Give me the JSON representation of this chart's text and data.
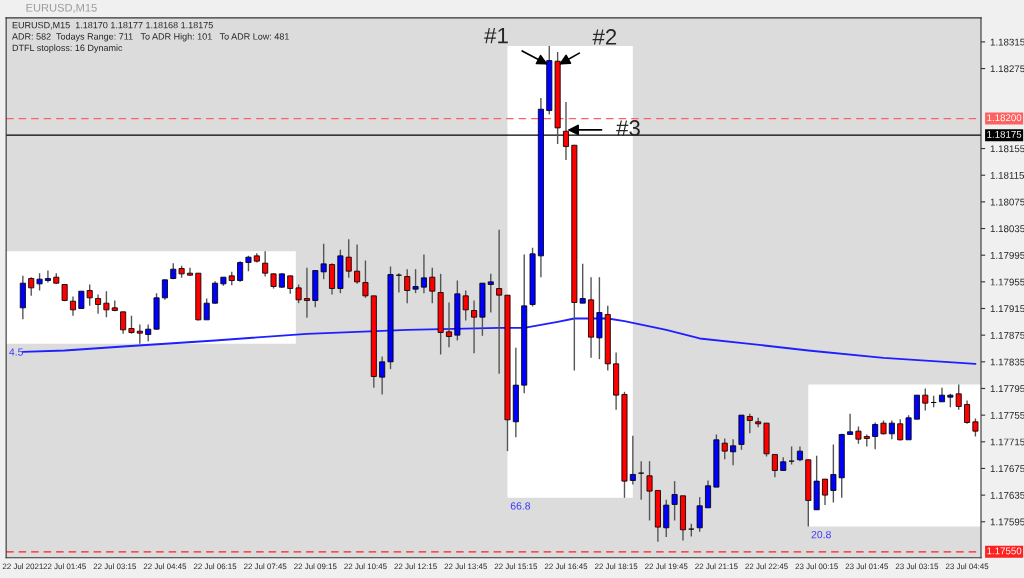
{
  "chart_data": {
    "type": "candlestick",
    "title": "EURUSD,M15",
    "annotations": [
      "EURUSD,M15  1.18170 1.18177 1.18168 1.18175",
      "ADR: 582  Todays Range: 711   To ADR High: 101   To ADR Low: 481",
      "DTFL stoploss: 16 Dynamic",
      {
        "text": "#1",
        "x": "2021-07-22T16:15",
        "y": 1.1828
      },
      {
        "text": "#2",
        "x": "2021-07-22T16:30",
        "y": 1.1828
      },
      {
        "text": "#3",
        "x": "2021-07-22T16:45",
        "y": 1.18183
      }
    ],
    "x": [
      "2021-07-22T00:30",
      "2021-07-22T00:45",
      "2021-07-22T01:00",
      "2021-07-22T01:15",
      "2021-07-22T01:30",
      "2021-07-22T01:45",
      "2021-07-22T02:00",
      "2021-07-22T02:15",
      "2021-07-22T02:30",
      "2021-07-22T02:45",
      "2021-07-22T03:00",
      "2021-07-22T03:15",
      "2021-07-22T03:30",
      "2021-07-22T03:45",
      "2021-07-22T04:00",
      "2021-07-22T04:15",
      "2021-07-22T04:30",
      "2021-07-22T04:45",
      "2021-07-22T05:00",
      "2021-07-22T05:15",
      "2021-07-22T05:30",
      "2021-07-22T05:45",
      "2021-07-22T06:00",
      "2021-07-22T06:15",
      "2021-07-22T06:30",
      "2021-07-22T06:45",
      "2021-07-22T07:00",
      "2021-07-22T07:15",
      "2021-07-22T07:30",
      "2021-07-22T07:45",
      "2021-07-22T08:00",
      "2021-07-22T08:15",
      "2021-07-22T08:30",
      "2021-07-22T08:45",
      "2021-07-22T09:00",
      "2021-07-22T09:15",
      "2021-07-22T09:30",
      "2021-07-22T09:45",
      "2021-07-22T10:00",
      "2021-07-22T10:15",
      "2021-07-22T10:30",
      "2021-07-22T10:45",
      "2021-07-22T11:00",
      "2021-07-22T11:15",
      "2021-07-22T11:30",
      "2021-07-22T11:45",
      "2021-07-22T12:00",
      "2021-07-22T12:15",
      "2021-07-22T12:30",
      "2021-07-22T12:45",
      "2021-07-22T13:00",
      "2021-07-22T13:15",
      "2021-07-22T13:30",
      "2021-07-22T13:45",
      "2021-07-22T14:00",
      "2021-07-22T14:15",
      "2021-07-22T14:30",
      "2021-07-22T14:45",
      "2021-07-22T15:00",
      "2021-07-22T15:15",
      "2021-07-22T15:30",
      "2021-07-22T15:45",
      "2021-07-22T16:00",
      "2021-07-22T16:15",
      "2021-07-22T16:30",
      "2021-07-22T16:45",
      "2021-07-22T17:00",
      "2021-07-22T17:15",
      "2021-07-22T17:30",
      "2021-07-22T17:45",
      "2021-07-22T18:00",
      "2021-07-22T18:15",
      "2021-07-22T18:30",
      "2021-07-22T18:45",
      "2021-07-22T19:00",
      "2021-07-22T19:15",
      "2021-07-22T19:30",
      "2021-07-22T19:45",
      "2021-07-22T20:00",
      "2021-07-22T20:15",
      "2021-07-22T20:30",
      "2021-07-22T20:45",
      "2021-07-22T21:00",
      "2021-07-22T21:15",
      "2021-07-22T21:30",
      "2021-07-22T21:45",
      "2021-07-22T22:00",
      "2021-07-22T22:15",
      "2021-07-22T22:30",
      "2021-07-22T22:45",
      "2021-07-22T23:00",
      "2021-07-22T23:15",
      "2021-07-22T23:30",
      "2021-07-22T23:45",
      "2021-07-23T00:00",
      "2021-07-23T00:15",
      "2021-07-23T00:30",
      "2021-07-23T00:45",
      "2021-07-23T01:00",
      "2021-07-23T01:15",
      "2021-07-23T01:30",
      "2021-07-23T01:45",
      "2021-07-23T02:00",
      "2021-07-23T02:15",
      "2021-07-23T02:30",
      "2021-07-23T02:45",
      "2021-07-23T03:00",
      "2021-07-23T03:15",
      "2021-07-23T03:30",
      "2021-07-23T03:45",
      "2021-07-23T04:00",
      "2021-07-23T04:15",
      "2021-07-23T04:30",
      "2021-07-23T04:45",
      "2021-07-23T05:00"
    ],
    "ohlc": [
      [
        1.17916,
        1.17964,
        1.17899,
        1.17953
      ],
      [
        1.1796,
        1.17962,
        1.17934,
        1.17946
      ],
      [
        1.17952,
        1.17968,
        1.17942,
        1.17959
      ],
      [
        1.17957,
        1.17972,
        1.17954,
        1.1796
      ],
      [
        1.17962,
        1.17968,
        1.17952,
        1.17953
      ],
      [
        1.17951,
        1.17951,
        1.17926,
        1.17927
      ],
      [
        1.17926,
        1.17933,
        1.17904,
        1.17913
      ],
      [
        1.17915,
        1.17941,
        1.17915,
        1.17941
      ],
      [
        1.17942,
        1.17951,
        1.17919,
        1.17931
      ],
      [
        1.1793,
        1.17936,
        1.17907,
        1.17921
      ],
      [
        1.17923,
        1.17941,
        1.17902,
        1.17913
      ],
      [
        1.17916,
        1.17927,
        1.17911,
        1.17912
      ],
      [
        1.1791,
        1.1791,
        1.17877,
        1.17883
      ],
      [
        1.17885,
        1.17904,
        1.17877,
        1.17879
      ],
      [
        1.17881,
        1.17891,
        1.17862,
        1.17878
      ],
      [
        1.17876,
        1.17891,
        1.17866,
        1.17884
      ],
      [
        1.17884,
        1.17938,
        1.17883,
        1.17931
      ],
      [
        1.17931,
        1.17959,
        1.17928,
        1.17958
      ],
      [
        1.1796,
        1.17983,
        1.17959,
        1.17974
      ],
      [
        1.17975,
        1.17979,
        1.17961,
        1.17967
      ],
      [
        1.17968,
        1.17976,
        1.17964,
        1.17965
      ],
      [
        1.17968,
        1.17968,
        1.17897,
        1.17898
      ],
      [
        1.17898,
        1.1793,
        1.17898,
        1.17923
      ],
      [
        1.17923,
        1.17956,
        1.17922,
        1.17953
      ],
      [
        1.17952,
        1.17962,
        1.17949,
        1.17962
      ],
      [
        1.17964,
        1.1797,
        1.1795,
        1.17957
      ],
      [
        1.17957,
        1.17986,
        1.17955,
        1.17984
      ],
      [
        1.17984,
        1.17994,
        1.17971,
        1.17992
      ],
      [
        1.17994,
        1.17998,
        1.17984,
        1.17986
      ],
      [
        1.17983,
        1.18001,
        1.17963,
        1.17968
      ],
      [
        1.17967,
        1.17968,
        1.17945,
        1.17948
      ],
      [
        1.17947,
        1.17968,
        1.17946,
        1.17967
      ],
      [
        1.17964,
        1.17964,
        1.17937,
        1.17945
      ],
      [
        1.17946,
        1.17951,
        1.17923,
        1.17928
      ],
      [
        1.1793,
        1.17976,
        1.17901,
        1.17927
      ],
      [
        1.17927,
        1.17972,
        1.17917,
        1.17972
      ],
      [
        1.1797,
        1.18012,
        1.17959,
        1.17982
      ],
      [
        1.17981,
        1.17983,
        1.17936,
        1.17945
      ],
      [
        1.17945,
        1.18003,
        1.17938,
        1.17994
      ],
      [
        1.17992,
        1.18019,
        1.17961,
        1.17971
      ],
      [
        1.17971,
        1.18011,
        1.17952,
        1.17955
      ],
      [
        1.17954,
        1.17987,
        1.17931,
        1.17934
      ],
      [
        1.17934,
        1.17934,
        1.17796,
        1.17813
      ],
      [
        1.17812,
        1.17843,
        1.17786,
        1.17835
      ],
      [
        1.17835,
        1.17978,
        1.17824,
        1.17966
      ],
      [
        1.17965,
        1.17968,
        1.17939,
        1.17965
      ],
      [
        1.17963,
        1.17974,
        1.17923,
        1.17942
      ],
      [
        1.17944,
        1.17974,
        1.17938,
        1.17948
      ],
      [
        1.17947,
        1.17996,
        1.17938,
        1.17961
      ],
      [
        1.17962,
        1.17976,
        1.17923,
        1.17941
      ],
      [
        1.17939,
        1.17967,
        1.17846,
        1.17879
      ],
      [
        1.1788,
        1.17924,
        1.17857,
        1.17873
      ],
      [
        1.17875,
        1.17957,
        1.17867,
        1.17937
      ],
      [
        1.17934,
        1.17942,
        1.17897,
        1.17913
      ],
      [
        1.17912,
        1.17927,
        1.17848,
        1.17902
      ],
      [
        1.17902,
        1.17953,
        1.17874,
        1.17953
      ],
      [
        1.17951,
        1.17967,
        1.17909,
        1.17955
      ],
      [
        1.17945,
        1.18033,
        1.17817,
        1.17935
      ],
      [
        1.17935,
        1.17935,
        1.17701,
        1.17748
      ],
      [
        1.17745,
        1.17856,
        1.17722,
        1.178
      ],
      [
        1.178,
        1.17996,
        1.17788,
        1.17919
      ],
      [
        1.17921,
        1.18006,
        1.17918,
        1.17997
      ],
      [
        1.17994,
        1.18231,
        1.17962,
        1.18214
      ],
      [
        1.18212,
        1.18309,
        1.18206,
        1.18287
      ],
      [
        1.18286,
        1.183,
        1.18162,
        1.18186
      ],
      [
        1.18181,
        1.18225,
        1.18138,
        1.18158
      ],
      [
        1.1816,
        1.1816,
        1.17822,
        1.17924
      ],
      [
        1.17923,
        1.17982,
        1.17923,
        1.1793
      ],
      [
        1.17928,
        1.17962,
        1.17841,
        1.17872
      ],
      [
        1.17871,
        1.17962,
        1.17839,
        1.17909
      ],
      [
        1.17906,
        1.17919,
        1.17822,
        1.17832
      ],
      [
        1.17832,
        1.17849,
        1.17763,
        1.17785
      ],
      [
        1.17786,
        1.1779,
        1.17631,
        1.17656
      ],
      [
        1.17657,
        1.17724,
        1.17651,
        1.17666
      ],
      [
        1.17668,
        1.17686,
        1.17628,
        1.17668
      ],
      [
        1.17664,
        1.17686,
        1.17597,
        1.17641
      ],
      [
        1.17642,
        1.17642,
        1.17565,
        1.17587
      ],
      [
        1.17586,
        1.17628,
        1.17572,
        1.1762
      ],
      [
        1.17621,
        1.17656,
        1.17597,
        1.17636
      ],
      [
        1.17634,
        1.17634,
        1.17567,
        1.17583
      ],
      [
        1.17584,
        1.17592,
        1.17573,
        1.17584
      ],
      [
        1.17586,
        1.17632,
        1.1758,
        1.17619
      ],
      [
        1.17616,
        1.17657,
        1.17616,
        1.17649
      ],
      [
        1.17647,
        1.17726,
        1.17647,
        1.17718
      ],
      [
        1.17713,
        1.1772,
        1.17689,
        1.17701
      ],
      [
        1.177,
        1.17719,
        1.1768,
        1.17709
      ],
      [
        1.17711,
        1.17755,
        1.17703,
        1.17755
      ],
      [
        1.17753,
        1.17757,
        1.17728,
        1.17747
      ],
      [
        1.17745,
        1.17751,
        1.17737,
        1.17742
      ],
      [
        1.17743,
        1.17743,
        1.17693,
        1.17697
      ],
      [
        1.17696,
        1.17696,
        1.17662,
        1.17672
      ],
      [
        1.17672,
        1.17692,
        1.17672,
        1.17685
      ],
      [
        1.17686,
        1.17708,
        1.17681,
        1.17686
      ],
      [
        1.17688,
        1.17708,
        1.17686,
        1.17701
      ],
      [
        1.17688,
        1.17688,
        1.17588,
        1.17627
      ],
      [
        1.17613,
        1.17694,
        1.17613,
        1.17656
      ],
      [
        1.17659,
        1.17659,
        1.1762,
        1.17635
      ],
      [
        1.17642,
        1.17711,
        1.17624,
        1.17666
      ],
      [
        1.17661,
        1.17727,
        1.17631,
        1.17726
      ],
      [
        1.17726,
        1.17757,
        1.17726,
        1.1773
      ],
      [
        1.17731,
        1.17738,
        1.17712,
        1.17719
      ],
      [
        1.17723,
        1.17726,
        1.17708,
        1.1772
      ],
      [
        1.17723,
        1.17744,
        1.17704,
        1.17741
      ],
      [
        1.17743,
        1.17747,
        1.17726,
        1.17727
      ],
      [
        1.17727,
        1.17747,
        1.17719,
        1.17743
      ],
      [
        1.17742,
        1.17749,
        1.17717,
        1.17718
      ],
      [
        1.17718,
        1.17755,
        1.17718,
        1.17751
      ],
      [
        1.17749,
        1.17785,
        1.17749,
        1.17785
      ],
      [
        1.17785,
        1.17795,
        1.17762,
        1.17773
      ],
      [
        1.17774,
        1.17784,
        1.17767,
        1.17774
      ],
      [
        1.17775,
        1.17796,
        1.17775,
        1.17785
      ],
      [
        1.17782,
        1.17787,
        1.17767,
        1.17785
      ],
      [
        1.17787,
        1.17801,
        1.17763,
        1.17768
      ],
      [
        1.17771,
        1.17777,
        1.17742,
        1.17744
      ],
      [
        1.17745,
        1.1775,
        1.17723,
        1.17731
      ]
    ],
    "colors": [
      "#0000ff",
      "#ff0000",
      "#0000ff",
      "#0000ff",
      "#ff0000",
      "#ff0000",
      "#ff0000",
      "#0000ff",
      "#ff0000",
      "#ff0000",
      "#ff0000",
      "#ff0000",
      "#ff0000",
      "#ff0000",
      "#ff0000",
      "#0000ff",
      "#0000ff",
      "#0000ff",
      "#0000ff",
      "#ff0000",
      "#ff0000",
      "#ff0000",
      "#0000ff",
      "#0000ff",
      "#0000ff",
      "#ff0000",
      "#0000ff",
      "#0000ff",
      "#ff0000",
      "#ff0000",
      "#ff0000",
      "#0000ff",
      "#ff0000",
      "#ff0000",
      "#ff0000",
      "#0000ff",
      "#0000ff",
      "#ff0000",
      "#0000ff",
      "#ff0000",
      "#ff0000",
      "#ff0000",
      "#ff0000",
      "#0000ff",
      "#0000ff",
      "#000000",
      "#ff0000",
      "#0000ff",
      "#0000ff",
      "#ff0000",
      "#ff0000",
      "#ff0000",
      "#0000ff",
      "#ff0000",
      "#ff0000",
      "#0000ff",
      "#0000ff",
      "#ff0000",
      "#ff0000",
      "#0000ff",
      "#0000ff",
      "#0000ff",
      "#0000ff",
      "#0000ff",
      "#ff0000",
      "#ff0000",
      "#ff0000",
      "#0000ff",
      "#ff0000",
      "#0000ff",
      "#ff0000",
      "#ff0000",
      "#ff0000",
      "#0000ff",
      "#000000",
      "#ff0000",
      "#ff0000",
      "#0000ff",
      "#0000ff",
      "#ff0000",
      "#000000",
      "#0000ff",
      "#0000ff",
      "#0000ff",
      "#ff0000",
      "#0000ff",
      "#0000ff",
      "#ff0000",
      "#ff0000",
      "#ff0000",
      "#ff0000",
      "#0000ff",
      "#000000",
      "#0000ff",
      "#ff0000",
      "#0000ff",
      "#ff0000",
      "#0000ff",
      "#0000ff",
      "#0000ff",
      "#ff0000",
      "#ff0000",
      "#0000ff",
      "#ff0000",
      "#0000ff",
      "#ff0000",
      "#0000ff",
      "#0000ff",
      "#ff0000",
      "#000000",
      "#0000ff",
      "#0000ff",
      "#ff0000",
      "#ff0000",
      "#ff0000"
    ],
    "series": [
      {
        "type": "line",
        "color": "#1f1fff",
        "x": [
          "2021-07-22T00:30",
          "2021-07-22T01:45",
          "2021-07-22T03:30",
          "2021-07-22T06:15",
          "2021-07-22T09:00",
          "2021-07-22T12:00",
          "2021-07-22T14:45",
          "2021-07-22T15:30",
          "2021-07-22T16:30",
          "2021-07-22T17:00",
          "2021-07-22T18:00",
          "2021-07-22T18:30",
          "2021-07-22T19:45",
          "2021-07-22T20:45",
          "2021-07-22T22:15",
          "2021-07-23T00:00",
          "2021-07-23T02:15",
          "2021-07-23T05:00"
        ],
        "values": [
          1.1785,
          1.17852,
          1.17858,
          1.17867,
          1.17877,
          1.17883,
          1.17886,
          1.17886,
          1.17895,
          1.179,
          1.179,
          1.17896,
          1.17883,
          1.1787,
          1.17862,
          1.17852,
          1.17841,
          1.17832
        ]
      }
    ],
    "bands": [
      {
        "axis": "x",
        "from": "2021-07-22T00:00",
        "to": "2021-07-22T08:40",
        "label": "4.5",
        "color": "#ffffff"
      },
      {
        "axis": "x",
        "from": "2021-07-22T15:00",
        "to": "2021-07-22T18:45",
        "label": "66.8",
        "color": "#ffffff"
      },
      {
        "axis": "x",
        "from": "2021-07-23T00:00",
        "to": "2021-07-23T05:10",
        "label": "20.8",
        "color": "#ffffff"
      }
    ],
    "ref_lines": [
      {
        "axis": "y",
        "value": 1.182,
        "label": "1.18200",
        "color": "#ff6060",
        "line_style": "dashed"
      },
      {
        "axis": "y",
        "value": 1.18175,
        "label": "1.18175",
        "color": "#000000",
        "line_style": "solid"
      },
      {
        "axis": "y",
        "value": 1.1755,
        "label": "1.17550",
        "color": "#ff2020",
        "line_style": "dashed"
      }
    ],
    "xlim": [
      "2021-07-22T00:00",
      "2021-07-23T05:10"
    ],
    "xticks": [
      {
        "value": "2021-07-22T00:30",
        "label": "22 Jul 2021"
      },
      {
        "value": "2021-07-22T01:45",
        "label": "22 Jul 01:45"
      },
      {
        "value": "2021-07-22T03:15",
        "label": "22 Jul 03:15"
      },
      {
        "value": "2021-07-22T04:45",
        "label": "22 Jul 04:45"
      },
      {
        "value": "2021-07-22T06:15",
        "label": "22 Jul 06:15"
      },
      {
        "value": "2021-07-22T07:45",
        "label": "22 Jul 07:45"
      },
      {
        "value": "2021-07-22T09:15",
        "label": "22 Jul 09:15"
      },
      {
        "value": "2021-07-22T10:45",
        "label": "22 Jul 10:45"
      },
      {
        "value": "2021-07-22T12:15",
        "label": "22 Jul 12:15"
      },
      {
        "value": "2021-07-22T13:45",
        "label": "22 Jul 13:45"
      },
      {
        "value": "2021-07-22T15:15",
        "label": "22 Jul 15:15"
      },
      {
        "value": "2021-07-22T16:45",
        "label": "22 Jul 16:45"
      },
      {
        "value": "2021-07-22T18:15",
        "label": "22 Jul 18:15"
      },
      {
        "value": "2021-07-22T19:45",
        "label": "22 Jul 19:45"
      },
      {
        "value": "2021-07-22T21:15",
        "label": "22 Jul 21:15"
      },
      {
        "value": "2021-07-22T22:45",
        "label": "22 Jul 22:45"
      },
      {
        "value": "2021-07-23T00:15",
        "label": "23 Jul 00:15"
      },
      {
        "value": "2021-07-23T01:45",
        "label": "23 Jul 01:45"
      },
      {
        "value": "2021-07-23T03:15",
        "label": "23 Jul 03:15"
      },
      {
        "value": "2021-07-23T04:45",
        "label": "23 Jul 04:45"
      }
    ],
    "ylim": [
      1.17541,
      1.18351
    ],
    "yticks": [
      {
        "value": 1.18315,
        "label": "1.18315"
      },
      {
        "value": 1.18275,
        "label": "1.18275"
      },
      {
        "value": 1.18155,
        "label": "1.18155"
      },
      {
        "value": 1.18115,
        "label": "1.18115"
      },
      {
        "value": 1.18075,
        "label": "1.18075"
      },
      {
        "value": 1.18035,
        "label": "1.18035"
      },
      {
        "value": 1.17995,
        "label": "1.17995"
      },
      {
        "value": 1.17955,
        "label": "1.17955"
      },
      {
        "value": 1.17915,
        "label": "1.17915"
      },
      {
        "value": 1.17875,
        "label": "1.17875"
      },
      {
        "value": 1.17835,
        "label": "1.17835"
      },
      {
        "value": 1.17795,
        "label": "1.17795"
      },
      {
        "value": 1.17755,
        "label": "1.17755"
      },
      {
        "value": 1.17715,
        "label": "1.17715"
      },
      {
        "value": 1.17675,
        "label": "1.17675"
      },
      {
        "value": 1.17635,
        "label": "1.17635"
      },
      {
        "value": 1.17595,
        "label": "1.17595"
      }
    ],
    "grid": false,
    "legend": false
  }
}
